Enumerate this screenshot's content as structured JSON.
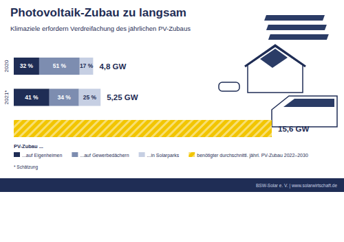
{
  "chart_data": {
    "type": "bar",
    "orientation": "horizontal",
    "stacked": true,
    "data_labels": true,
    "tick_labels": "y",
    "legend": "bottom",
    "title": "Photovoltaik-Zubau zu langsam",
    "subtitle": "Klimaziele erfordern Verdreifachung des jährlichen PV-Zubaus",
    "categories": [
      "2020",
      "2021*",
      null
    ],
    "totals": [
      4.8,
      5.25,
      15.6
    ],
    "total_labels": [
      "4,8 GW",
      "5,25 GW",
      "15,6 GW"
    ],
    "series": [
      {
        "name": "...auf Eigenheimen",
        "color": "#1f2d55",
        "values": [
          32,
          41,
          null
        ],
        "value_labels": [
          "32 %",
          "41 %",
          null
        ],
        "data_labels": true
      },
      {
        "name": "...auf Gewerbedächern",
        "color": "#7d8db0",
        "values": [
          51,
          34,
          null
        ],
        "value_labels": [
          "51 %",
          "34 %",
          null
        ],
        "data_labels": true
      },
      {
        "name": "...in Solarparks",
        "color": "#c6cfe3",
        "values": [
          17,
          25,
          null
        ],
        "value_labels": [
          "17 %",
          "25 %",
          null
        ],
        "data_labels": true
      },
      {
        "name": "benötigter durchschnittl. jährl. PV-Zubau 2022–2030",
        "color": "#f2c500",
        "values": [
          null,
          null,
          100
        ],
        "data_labels": false
      }
    ],
    "legend_title": "PV-Zubau ...",
    "notes": "* Schätzung",
    "source": "BSW-Solar e. V. | www.solarwirtschaft.de"
  }
}
